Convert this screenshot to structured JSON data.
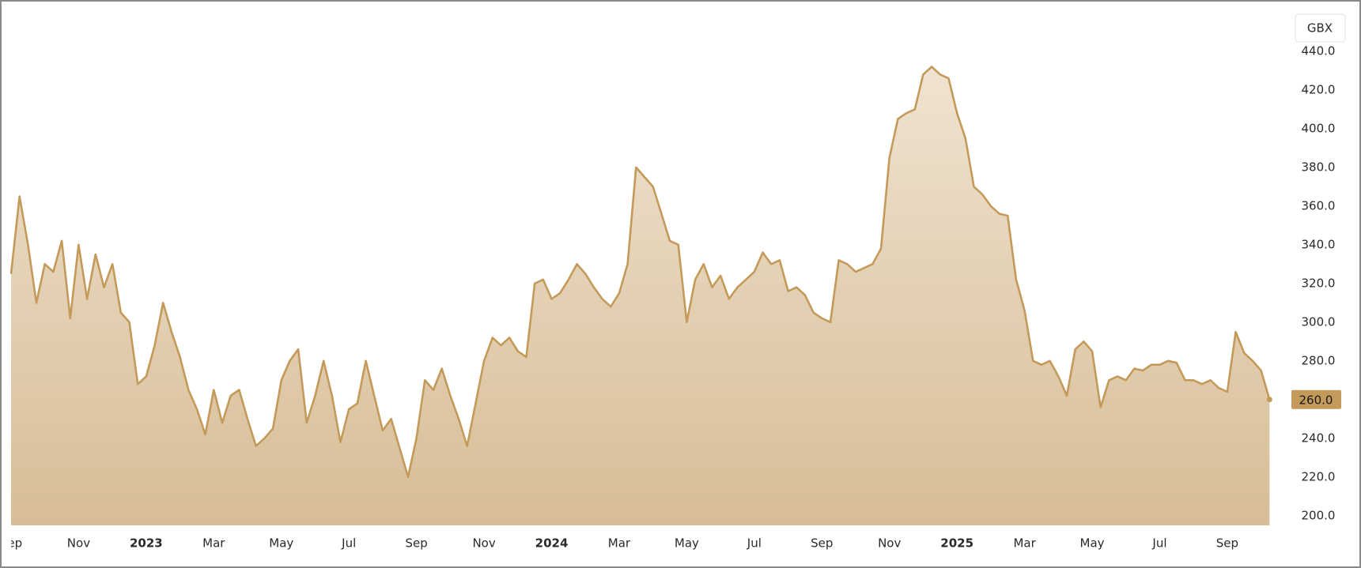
{
  "chart_data": {
    "type": "area",
    "currency": "GBX",
    "last_label": "260.0",
    "series": [
      {
        "color": "#c49a5a",
        "values": [
          325,
          365,
          340,
          310,
          330,
          326,
          342,
          302,
          340,
          312,
          335,
          318,
          330,
          305,
          300,
          268,
          272,
          288,
          310,
          295,
          282,
          265,
          255,
          242,
          265,
          248,
          262,
          265,
          250,
          236,
          240,
          245,
          270,
          280,
          286,
          248,
          262,
          280,
          262,
          238,
          255,
          258,
          280,
          262,
          244,
          250,
          235,
          220,
          240,
          270,
          265,
          276,
          262,
          250,
          236,
          258,
          280,
          292,
          288,
          292,
          285,
          282,
          320,
          322,
          312,
          315,
          322,
          330,
          325,
          318,
          312,
          308,
          315,
          330,
          380,
          375,
          370,
          356,
          342,
          340,
          300,
          322,
          330,
          318,
          324,
          312,
          318,
          322,
          326,
          336,
          330,
          332,
          316,
          318,
          314,
          305,
          302,
          300,
          332,
          330,
          326,
          328,
          330,
          338,
          385,
          405,
          408,
          410,
          428,
          432,
          428,
          426,
          408,
          395,
          370,
          366,
          360,
          356,
          355,
          322,
          306,
          280,
          278,
          280,
          272,
          262,
          286,
          290,
          285,
          256,
          270,
          272,
          270,
          276,
          275,
          278,
          278,
          280,
          279,
          270,
          270,
          268,
          270,
          266,
          264,
          295,
          284,
          280,
          275,
          260
        ]
      }
    ],
    "xlim": [
      0,
      150
    ],
    "xticks": [
      {
        "value": 0,
        "label": "Sep"
      },
      {
        "value": 8,
        "label": "Nov"
      },
      {
        "value": 16,
        "label": "2023"
      },
      {
        "value": 24,
        "label": "Mar"
      },
      {
        "value": 32,
        "label": "May"
      },
      {
        "value": 40,
        "label": "Jul"
      },
      {
        "value": 48,
        "label": "Sep"
      },
      {
        "value": 56,
        "label": "Nov"
      },
      {
        "value": 64,
        "label": "2024"
      },
      {
        "value": 72,
        "label": "Mar"
      },
      {
        "value": 80,
        "label": "May"
      },
      {
        "value": 88,
        "label": "Jul"
      },
      {
        "value": 96,
        "label": "Sep"
      },
      {
        "value": 104,
        "label": "Nov"
      },
      {
        "value": 112,
        "label": "2025"
      },
      {
        "value": 120,
        "label": "Mar"
      },
      {
        "value": 128,
        "label": "May"
      },
      {
        "value": 136,
        "label": "Jul"
      },
      {
        "value": 144,
        "label": "Sep"
      }
    ],
    "ylim": [
      195,
      462
    ],
    "yticks": [
      {
        "value": 200,
        "label": "200.0"
      },
      {
        "value": 220,
        "label": "220.0"
      },
      {
        "value": 240,
        "label": "240.0"
      },
      {
        "value": 260,
        "label": "260.0"
      },
      {
        "value": 280,
        "label": "280.0"
      },
      {
        "value": 300,
        "label": "300.0"
      },
      {
        "value": 320,
        "label": "320.0"
      },
      {
        "value": 340,
        "label": "340.0"
      },
      {
        "value": 360,
        "label": "360.0"
      },
      {
        "value": 380,
        "label": "380.0"
      },
      {
        "value": 400,
        "label": "400.0"
      },
      {
        "value": 420,
        "label": "420.0"
      },
      {
        "value": 440,
        "label": "440.0"
      }
    ]
  }
}
